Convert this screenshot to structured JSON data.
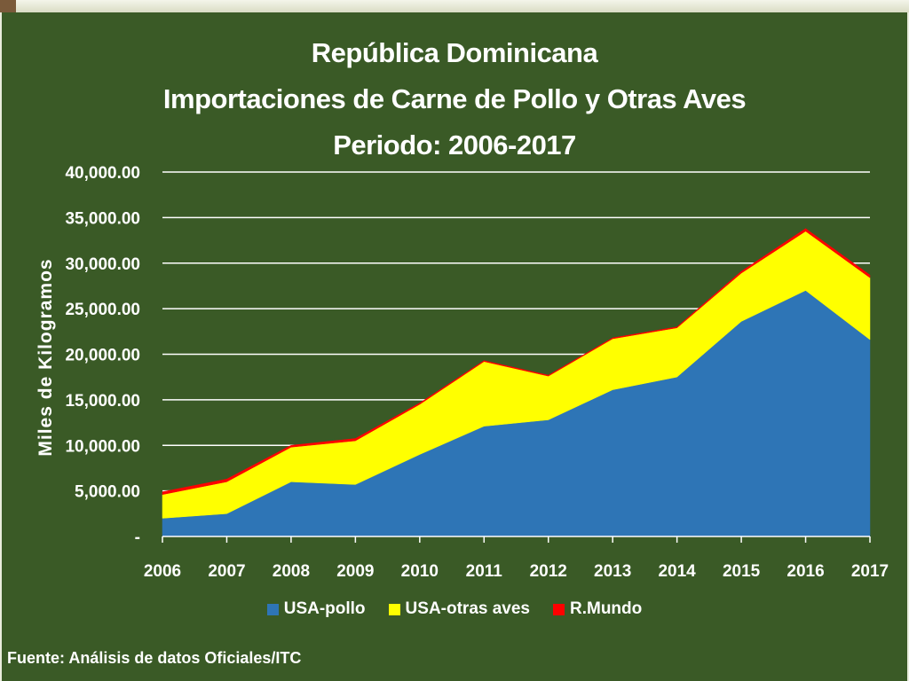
{
  "slide": {
    "source": "Fuente: Análisis de datos Oficiales/ITC"
  },
  "chart_data": {
    "type": "area",
    "stacked": true,
    "title_lines": [
      "República Dominicana",
      "Importaciones de Carne de Pollo y Otras Aves",
      "Periodo: 2006-2017"
    ],
    "ylabel": "Miles de Kilogramos",
    "ylim": [
      0,
      40000
    ],
    "yticks": [
      0,
      5000,
      10000,
      15000,
      20000,
      25000,
      30000,
      35000,
      40000
    ],
    "ytick_labels": [
      "-",
      "5,000.00",
      "10,000.00",
      "15,000.00",
      "20,000.00",
      "25,000.00",
      "30,000.00",
      "35,000.00",
      "40,000.00"
    ],
    "x": [
      "2006",
      "2007",
      "2008",
      "2009",
      "2010",
      "2011",
      "2012",
      "2013",
      "2014",
      "2015",
      "2016",
      "2017"
    ],
    "grid": true,
    "legend_position": "bottom",
    "series": [
      {
        "name": "USA-pollo",
        "color": "#2e75b6",
        "values": [
          2000,
          2500,
          6000,
          5700,
          9000,
          12100,
          12800,
          16100,
          17500,
          23600,
          27000,
          21600
        ]
      },
      {
        "name": "USA-otras aves",
        "color": "#ffff00",
        "values": [
          2600,
          3500,
          3800,
          4800,
          5500,
          7100,
          4800,
          5600,
          5400,
          5300,
          6500,
          6800
        ]
      },
      {
        "name": "R.Mundo",
        "color": "#ff0000",
        "values": [
          300,
          300,
          200,
          250,
          150,
          100,
          100,
          100,
          100,
          200,
          300,
          300
        ]
      }
    ]
  }
}
